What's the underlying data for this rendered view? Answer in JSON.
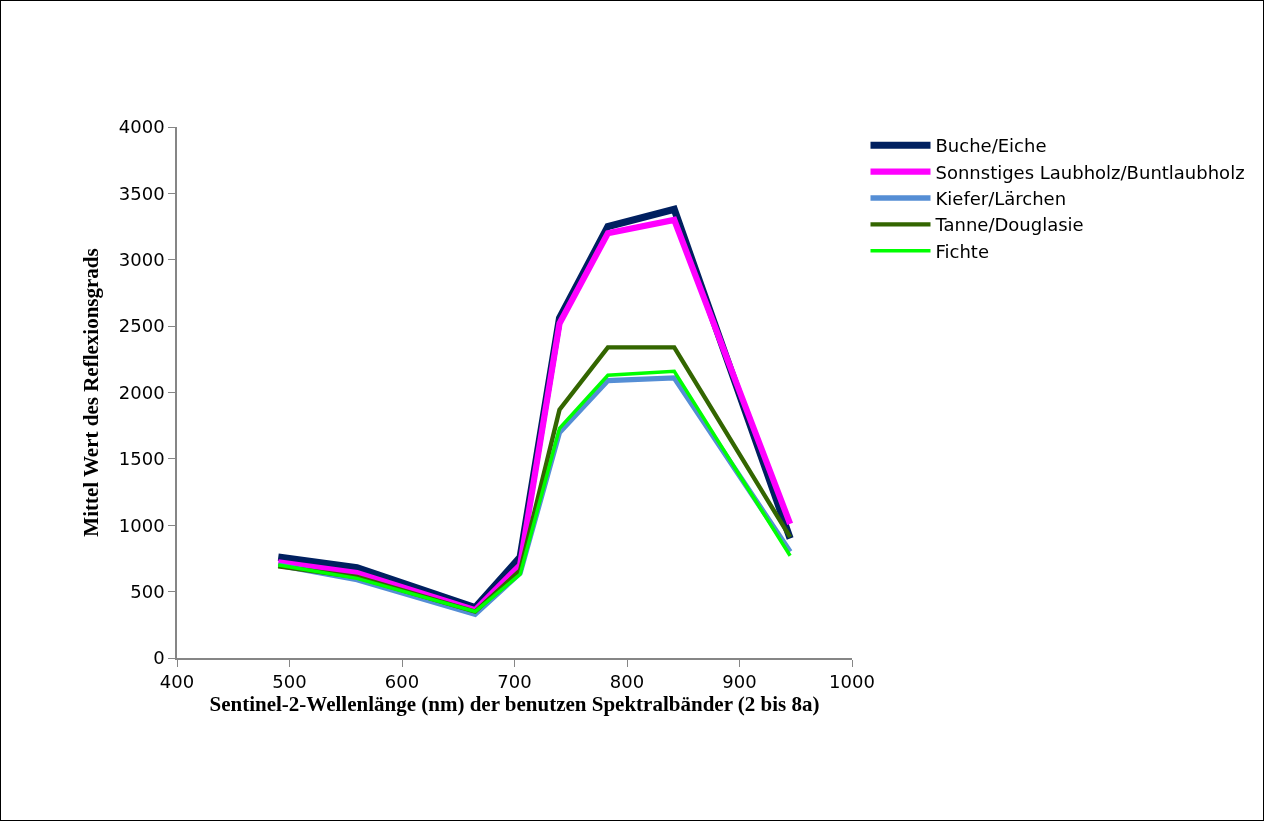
{
  "chart_data": {
    "type": "line",
    "xlabel": "Sentinel-2-Wellenlänge (nm) der benutzen Spektralbänder (2 bis 8a)",
    "ylabel": "Mittel Wert des Reflexionsgrads",
    "x": [
      490,
      560,
      665,
      705,
      740,
      783,
      842,
      945
    ],
    "series": [
      {
        "name": "Buche/Eiche",
        "color": "#002060",
        "values": [
          760,
          680,
          380,
          760,
          2560,
          3250,
          3380,
          900
        ]
      },
      {
        "name": "Sonnstiges Laubholz/Buntlaubholz",
        "color": "#ff00ff",
        "values": [
          720,
          640,
          360,
          700,
          2520,
          3200,
          3300,
          1010
        ]
      },
      {
        "name": "Kiefer/Lärchen",
        "color": "#558ed5",
        "values": [
          700,
          590,
          330,
          640,
          1700,
          2090,
          2110,
          800
        ]
      },
      {
        "name": "Tanne/Douglasie",
        "color": "#336600",
        "values": [
          690,
          610,
          350,
          660,
          1870,
          2340,
          2340,
          910
        ]
      },
      {
        "name": "Fichte",
        "color": "#00ff00",
        "values": [
          700,
          600,
          350,
          630,
          1730,
          2130,
          2160,
          770
        ]
      }
    ],
    "xlim": [
      400,
      1000
    ],
    "xticks": [
      400,
      500,
      600,
      700,
      800,
      900,
      1000
    ],
    "ylim": [
      0,
      4000
    ],
    "yticks": [
      0,
      500,
      1000,
      1500,
      2000,
      2500,
      3000,
      3500,
      4000
    ],
    "grid": false,
    "legend": "right",
    "marker": "none",
    "line_style": "solid"
  }
}
